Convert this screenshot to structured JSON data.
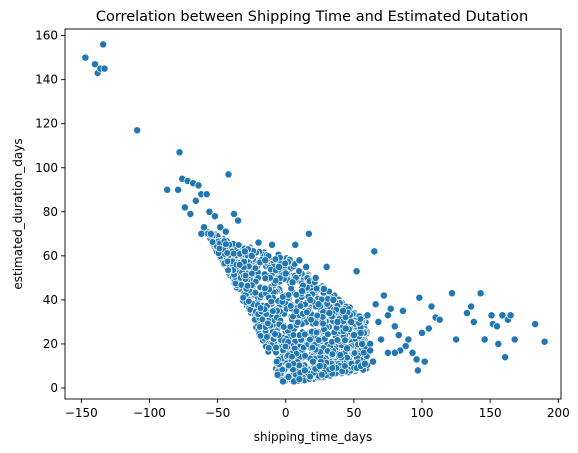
{
  "chart_data": {
    "type": "scatter",
    "title": "Correlation between Shipping Time and Estimated Dutation",
    "xlabel": "shipping_time_days",
    "ylabel": "estimated_duration_days",
    "xlim": [
      -162,
      202
    ],
    "ylim": [
      -5,
      163
    ],
    "xticks": [
      -150,
      -100,
      -50,
      0,
      50,
      100,
      150,
      200
    ],
    "yticks": [
      0,
      20,
      40,
      60,
      80,
      100,
      120,
      140,
      160
    ],
    "grid": false,
    "color": "#1f77b4",
    "series": [
      {
        "points": [
          [
            -147,
            150
          ],
          [
            -140,
            147
          ],
          [
            -138,
            143
          ],
          [
            -136,
            145
          ],
          [
            -133,
            145
          ],
          [
            -134,
            156
          ],
          [
            -109,
            117
          ],
          [
            -78,
            107
          ],
          [
            -42,
            97
          ],
          [
            -87,
            90
          ],
          [
            -79,
            90
          ],
          [
            -76,
            95
          ],
          [
            -72,
            94
          ],
          [
            -68,
            93
          ],
          [
            -64,
            92
          ],
          [
            -62,
            88
          ],
          [
            -58,
            88
          ],
          [
            -66,
            85
          ],
          [
            -70,
            79
          ],
          [
            -74,
            82
          ],
          [
            -56,
            80
          ],
          [
            -52,
            78
          ],
          [
            -60,
            73
          ],
          [
            -38,
            79
          ],
          [
            -35,
            76
          ],
          [
            -48,
            73
          ],
          [
            -44,
            71
          ],
          [
            -62,
            70
          ],
          [
            -55,
            70
          ],
          [
            -20,
            66
          ],
          [
            -10,
            65
          ],
          [
            7,
            65
          ],
          [
            17,
            70
          ],
          [
            30,
            55
          ],
          [
            52,
            53
          ],
          [
            65,
            62
          ],
          [
            60,
            33
          ],
          [
            66,
            38
          ],
          [
            72,
            42
          ],
          [
            75,
            33
          ],
          [
            77,
            36
          ],
          [
            80,
            28
          ],
          [
            83,
            24
          ],
          [
            86,
            35
          ],
          [
            90,
            22
          ],
          [
            93,
            16
          ],
          [
            98,
            41
          ],
          [
            100,
            25
          ],
          [
            102,
            12
          ],
          [
            105,
            27
          ],
          [
            107,
            37
          ],
          [
            110,
            32
          ],
          [
            113,
            31
          ],
          [
            96,
            13
          ],
          [
            88,
            19
          ],
          [
            84,
            17
          ],
          [
            80,
            16
          ],
          [
            97,
            8
          ],
          [
            75,
            16
          ],
          [
            70,
            22
          ],
          [
            68,
            30
          ],
          [
            64,
            12
          ],
          [
            62,
            20
          ],
          [
            58,
            11
          ],
          [
            122,
            43
          ],
          [
            125,
            22
          ],
          [
            133,
            34
          ],
          [
            136,
            37
          ],
          [
            138,
            30
          ],
          [
            143,
            43
          ],
          [
            146,
            22
          ],
          [
            151,
            33
          ],
          [
            152,
            29
          ],
          [
            155,
            28
          ],
          [
            156,
            20
          ],
          [
            159,
            33
          ],
          [
            161,
            14
          ],
          [
            163,
            31
          ],
          [
            165,
            33
          ],
          [
            168,
            22
          ],
          [
            183,
            29
          ],
          [
            190,
            21
          ],
          [
            -2,
            3
          ],
          [
            2,
            5
          ],
          [
            6,
            3
          ],
          [
            10,
            4
          ],
          [
            14,
            8
          ],
          [
            -6,
            6
          ],
          [
            20,
            12
          ],
          [
            25,
            10
          ],
          [
            40,
            15
          ],
          [
            45,
            18
          ],
          [
            55,
            25
          ],
          [
            48,
            30
          ],
          [
            42,
            35
          ],
          [
            35,
            40
          ],
          [
            28,
            45
          ],
          [
            22,
            50
          ],
          [
            15,
            55
          ],
          [
            10,
            58
          ],
          [
            -25,
            60
          ],
          [
            -30,
            62
          ],
          [
            -15,
            58
          ],
          [
            -5,
            55
          ],
          [
            0,
            52
          ],
          [
            5,
            48
          ],
          [
            12,
            44
          ],
          [
            18,
            40
          ],
          [
            24,
            38
          ],
          [
            32,
            34
          ],
          [
            38,
            30
          ],
          [
            44,
            27
          ],
          [
            50,
            24
          ],
          [
            56,
            20
          ],
          [
            62,
            17
          ]
        ]
      }
    ],
    "density_band": {
      "envelope_min": [
        [
          -58,
          70
        ],
        [
          -40,
          50
        ],
        [
          -25,
          32
        ],
        [
          -12,
          14
        ],
        [
          -3,
          3
        ],
        [
          10,
          3
        ],
        [
          30,
          5
        ],
        [
          55,
          8
        ]
      ],
      "envelope_max": [
        [
          -58,
          72
        ],
        [
          -40,
          66
        ],
        [
          -20,
          63
        ],
        [
          0,
          60
        ],
        [
          20,
          50
        ],
        [
          40,
          40
        ],
        [
          55,
          33
        ],
        [
          60,
          30
        ]
      ]
    }
  }
}
